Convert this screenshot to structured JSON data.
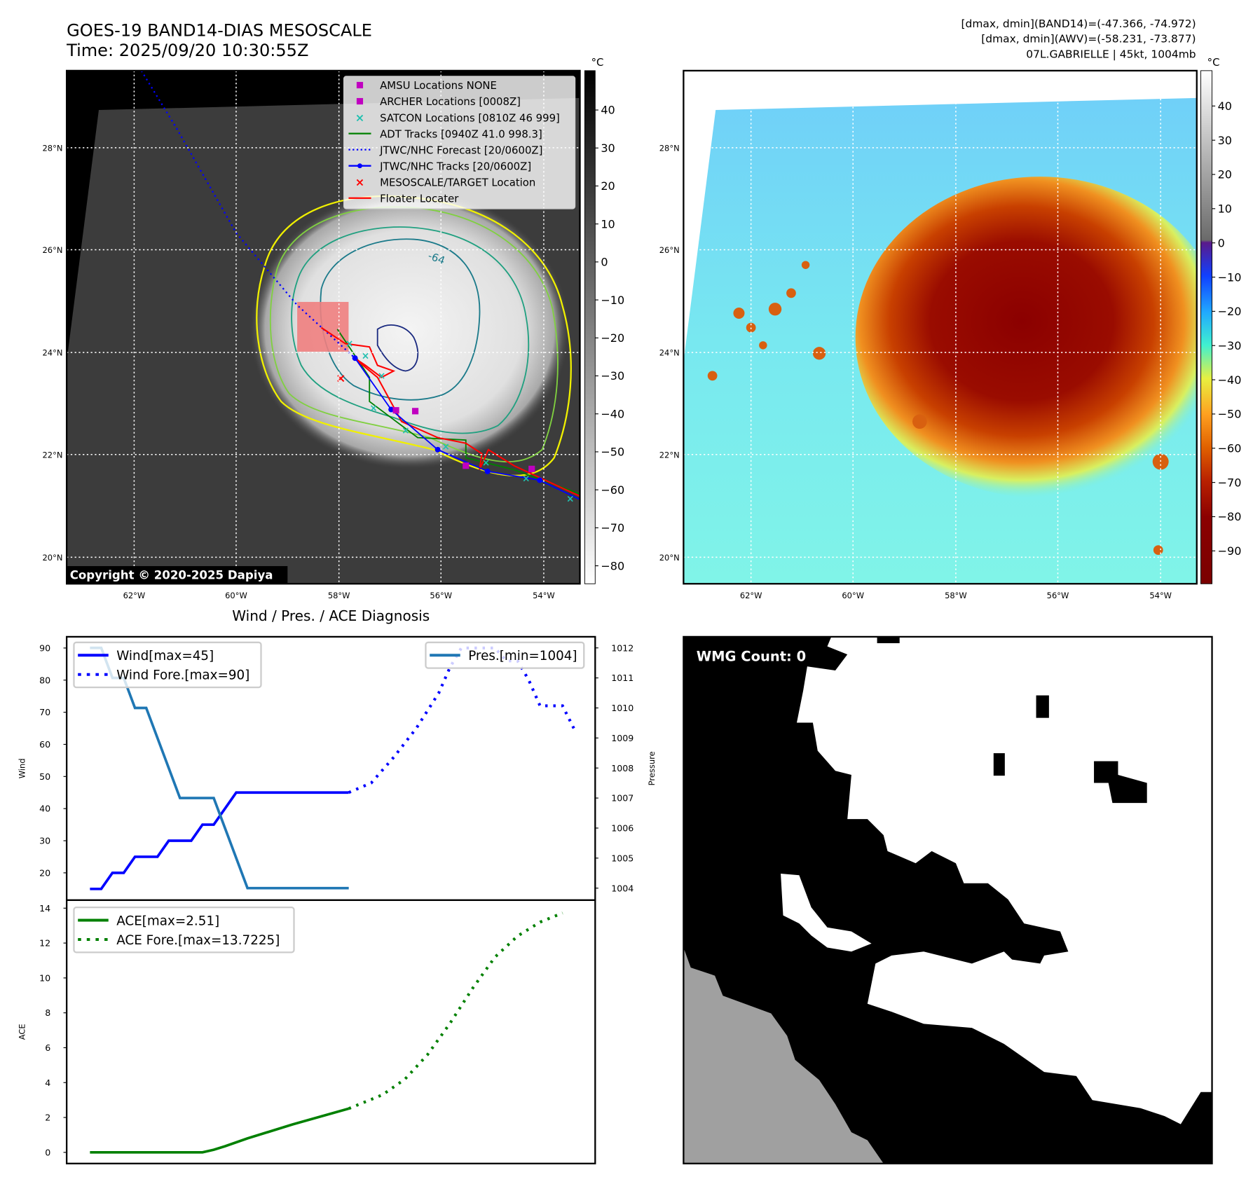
{
  "header": {
    "title": "GOES-19 BAND14-DIAS MESOSCALE",
    "time": "Time: 2025/09/20 10:30:55Z",
    "info_line1": "[dmax, dmin](BAND14)=(-47.366, -74.972)",
    "info_line2": "[dmax, dmin](AWV)=(-58.231, -73.877)",
    "info_line3": "07L.GABRIELLE | 45kt, 1004mb"
  },
  "map": {
    "lat_labels": [
      "28°N",
      "26°N",
      "24°N",
      "22°N",
      "20°N"
    ],
    "lon_labels": [
      "62°W",
      "60°W",
      "58°W",
      "56°W",
      "54°W"
    ],
    "contour_label": "-64",
    "copyright": "Copyright © 2020-2025 Dapiya",
    "legend": [
      {
        "label": "AMSU Locations NONE",
        "marker": "square",
        "color": "#c000c0"
      },
      {
        "label": "ARCHER Locations [0008Z]",
        "marker": "square",
        "color": "#c000c0"
      },
      {
        "label": "SATCON Locations [0810Z 46 999]",
        "marker": "x",
        "color": "#20c0b0"
      },
      {
        "label": "ADT Tracks [0940Z 41.0 998.3]",
        "marker": "line",
        "color": "#008000"
      },
      {
        "label": "JTWC/NHC Forecast [20/0600Z]",
        "marker": "dotted",
        "color": "#0000ff"
      },
      {
        "label": "JTWC/NHC Tracks [20/0600Z]",
        "marker": "line-dot",
        "color": "#0000ff"
      },
      {
        "label": "MESOSCALE/TARGET Location",
        "marker": "x",
        "color": "#ff0000"
      },
      {
        "label": "Floater Locater",
        "marker": "line",
        "color": "#ff0000"
      }
    ]
  },
  "colorbar_left": {
    "unit": "°C",
    "ticks": [
      "40",
      "30",
      "20",
      "10",
      "0",
      "−10",
      "−20",
      "−30",
      "−40",
      "−50",
      "−60",
      "−70",
      "−80"
    ],
    "values": [
      40,
      30,
      20,
      10,
      0,
      -10,
      -20,
      -30,
      -40,
      -50,
      -60,
      -70,
      -80
    ]
  },
  "colorbar_right": {
    "unit": "°C",
    "ticks": [
      "40",
      "30",
      "20",
      "10",
      "0",
      "−10",
      "−20",
      "−30",
      "−40",
      "−50",
      "−60",
      "−70",
      "−80",
      "−90"
    ],
    "values": [
      40,
      30,
      20,
      10,
      0,
      -10,
      -20,
      -30,
      -40,
      -50,
      -60,
      -70,
      -80,
      -90
    ]
  },
  "diagnosis": {
    "title": "Wind / Pres. / ACE Diagnosis",
    "wind_ylabel": "Wind",
    "pres_ylabel": "Pressure",
    "ace_ylabel": "ACE"
  },
  "chart_data": [
    {
      "type": "line",
      "title": "Wind / Pres. / ACE Diagnosis",
      "ylabel": "Wind",
      "y2label": "Pressure",
      "ylim": [
        11.5,
        93.5
      ],
      "y2lim": [
        1003.6,
        1012.37
      ],
      "xlim": [
        -2.07,
        44.9
      ],
      "yticks": [
        20,
        30,
        40,
        50,
        60,
        70,
        80,
        90
      ],
      "y2ticks": [
        1004,
        1005,
        1006,
        1007,
        1008,
        1009,
        1010,
        1011,
        1012
      ],
      "legend_left": "upper-left",
      "legend_right": "upper-right",
      "series": [
        {
          "name": "Wind[max=45]",
          "axis": "left",
          "style": "solid",
          "color": "#0000ff",
          "x": [
            0,
            1,
            2,
            3,
            4,
            6,
            7,
            9,
            10,
            11,
            13,
            23
          ],
          "y": [
            15,
            15,
            20,
            20,
            25,
            25,
            30,
            30,
            35,
            35,
            45,
            45
          ]
        },
        {
          "name": "Wind Fore.[max=90]",
          "axis": "left",
          "style": "dotted",
          "color": "#0000ff",
          "x": [
            23,
            25,
            27,
            29,
            31,
            32,
            33,
            36,
            37,
            38,
            39,
            40,
            42,
            43
          ],
          "y": [
            45,
            48,
            56,
            65,
            76,
            84,
            90,
            90,
            86,
            86,
            80,
            72,
            72,
            65
          ]
        },
        {
          "name": "Pres.[min=1004]",
          "axis": "right",
          "style": "solid",
          "color": "#1f77b4",
          "x": [
            0,
            1,
            2,
            3,
            4,
            5,
            8,
            11,
            14,
            23
          ],
          "y": [
            1012,
            1012,
            1011,
            1011,
            1010,
            1010,
            1007,
            1007,
            1004,
            1004
          ]
        }
      ]
    },
    {
      "type": "line",
      "ylabel": "ACE",
      "ylim": [
        -0.64,
        14.46
      ],
      "xlim": [
        -2.07,
        44.9
      ],
      "yticks": [
        0,
        2,
        4,
        6,
        8,
        10,
        12,
        14
      ],
      "legend": "upper-left",
      "series": [
        {
          "name": "ACE[max=2.51]",
          "style": "solid",
          "color": "#008000",
          "x": [
            0,
            10,
            11,
            12,
            14,
            18,
            23
          ],
          "y": [
            0,
            0,
            0.15,
            0.35,
            0.8,
            1.6,
            2.51
          ]
        },
        {
          "name": "ACE Fore.[max=13.7225]",
          "style": "dotted",
          "color": "#008000",
          "x": [
            23,
            26,
            28,
            30,
            32,
            34,
            36,
            38,
            40,
            42
          ],
          "y": [
            2.51,
            3.3,
            4.2,
            5.6,
            7.4,
            9.4,
            11.2,
            12.4,
            13.2,
            13.7225
          ]
        }
      ]
    }
  ],
  "wmg": {
    "count_label": "WMG Count: 0"
  }
}
